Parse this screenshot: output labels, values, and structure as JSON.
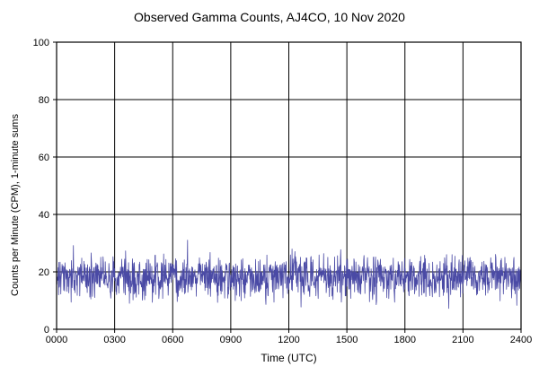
{
  "page": {
    "background": "#ffffff",
    "text_color": "#000000"
  },
  "chart_data": {
    "type": "line",
    "title": "Observed Gamma Counts, AJ4CO, 10 Nov 2020",
    "xlabel": "Time (UTC)",
    "ylabel": "Counts per Minute (CPM), 1-minute sums",
    "xlim_minutes": [
      0,
      1440
    ],
    "ylim": [
      0,
      100
    ],
    "x_ticks_minutes": [
      0,
      180,
      360,
      540,
      720,
      900,
      1080,
      1260,
      1440
    ],
    "x_tick_labels": [
      "0000",
      "0300",
      "0600",
      "0900",
      "1200",
      "1500",
      "1800",
      "2100",
      "2400"
    ],
    "y_ticks": [
      0,
      20,
      40,
      60,
      80,
      100
    ],
    "y_tick_labels": [
      "0",
      "20",
      "40",
      "60",
      "80",
      "100"
    ],
    "grid": true,
    "grid_color": "#000000",
    "border_color": "#000000",
    "legend": "none",
    "line_color": "#4a4aa5",
    "series": [
      {
        "name": "gamma-counts-cpm",
        "description": "Noisy 1-minute gamma count sums fluctuating around ~18 CPM, mostly 10-27 CPM, occasional spikes to ~36 and dips to ~5",
        "generator": {
          "kind": "seeded-gaussian-noise",
          "seed": 20201110,
          "n": 1441,
          "mean": 18.2,
          "std": 3.6,
          "min": 4.5,
          "max": 36.5,
          "spike_prob": 0.006,
          "spike_min": 5,
          "spike_max": 14
        }
      }
    ]
  }
}
